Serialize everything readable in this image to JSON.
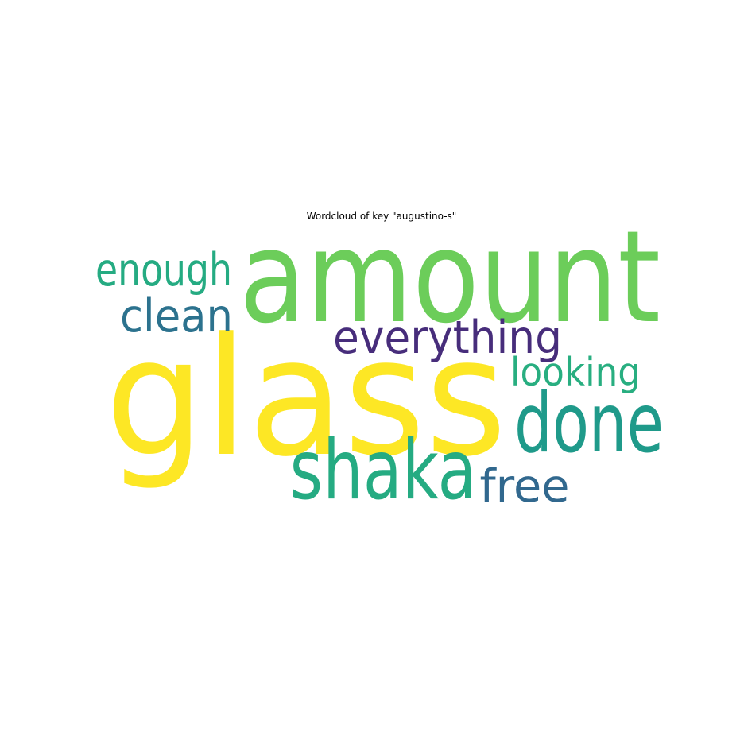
{
  "chart_data": {
    "type": "wordcloud",
    "title": "Wordcloud of key \"augustino-s\"",
    "words": [
      {
        "text": "glass",
        "weight": 1.0,
        "color": "#fde725"
      },
      {
        "text": "amount",
        "weight": 0.78,
        "color": "#6ccd5a"
      },
      {
        "text": "shaka",
        "weight": 0.5,
        "color": "#25ab82"
      },
      {
        "text": "done",
        "weight": 0.5,
        "color": "#1f9a8a"
      },
      {
        "text": "everything",
        "weight": 0.28,
        "color": "#472d7b"
      },
      {
        "text": "enough",
        "weight": 0.28,
        "color": "#25ab82"
      },
      {
        "text": "clean",
        "weight": 0.28,
        "color": "#2c728e"
      },
      {
        "text": "looking",
        "weight": 0.24,
        "color": "#28ae80"
      },
      {
        "text": "free",
        "weight": 0.28,
        "color": "#31688e"
      }
    ]
  }
}
